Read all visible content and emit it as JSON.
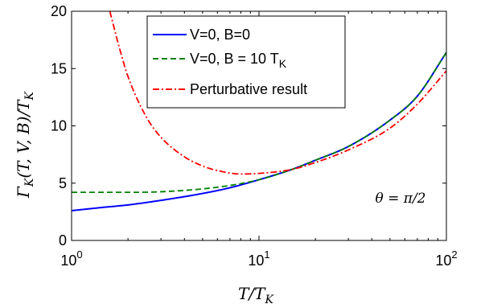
{
  "chart_data": {
    "type": "line",
    "xscale": "log",
    "xlim": [
      1,
      100
    ],
    "ylim": [
      0,
      20
    ],
    "xticks": [
      1,
      10,
      100
    ],
    "xtick_labels": [
      {
        "base": "10",
        "exp": "0"
      },
      {
        "base": "10",
        "exp": "1"
      },
      {
        "base": "10",
        "exp": "2"
      }
    ],
    "yticks": [
      0,
      5,
      10,
      15,
      20
    ],
    "ytick_labels": [
      "0",
      "5",
      "10",
      "15",
      "20"
    ],
    "xlabel": "T/T_K",
    "ylabel": "Γ_K(T,V,B)/T_K",
    "annotation": "θ = π/2",
    "grid": false,
    "legend_position": "top-right",
    "series": [
      {
        "name": "V=0, B=0",
        "color": "#0000ff",
        "dash": "solid",
        "x": [
          1,
          1.5,
          2,
          3,
          5,
          7,
          10,
          15,
          20,
          30,
          50,
          70,
          100
        ],
        "y": [
          2.6,
          2.9,
          3.1,
          3.5,
          4.1,
          4.6,
          5.3,
          6.2,
          7.0,
          8.2,
          10.5,
          12.6,
          16.4
        ]
      },
      {
        "name": "V=0, B = 10 T_K",
        "color": "#008000",
        "dash": "dashed",
        "x": [
          1,
          1.5,
          2,
          3,
          5,
          7,
          10,
          15,
          20,
          30,
          50,
          70,
          100
        ],
        "y": [
          4.2,
          4.2,
          4.2,
          4.25,
          4.5,
          4.8,
          5.3,
          6.2,
          7.0,
          8.2,
          10.5,
          12.6,
          16.4
        ]
      },
      {
        "name": "Perturbative result",
        "color": "#ff0000",
        "dash": "dashdot",
        "x": [
          1.6,
          1.8,
          2,
          2.5,
          3,
          4,
          5,
          6,
          8,
          10,
          15,
          20,
          30,
          50,
          70,
          100
        ],
        "y": [
          20,
          16.8,
          14.3,
          10.8,
          9.0,
          7.3,
          6.5,
          6.1,
          5.8,
          5.85,
          6.2,
          6.8,
          7.9,
          9.8,
          11.9,
          14.8
        ]
      }
    ]
  }
}
